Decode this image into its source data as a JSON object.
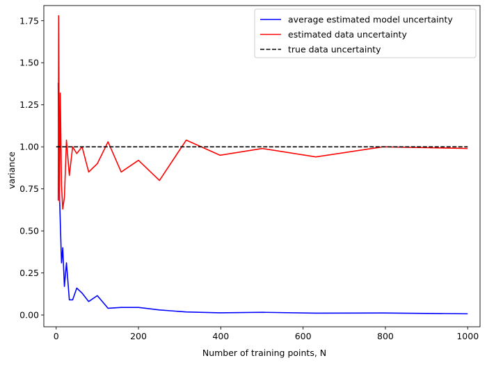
{
  "chart_data": {
    "type": "line",
    "title": "",
    "xlabel": "Number of training points, N",
    "ylabel": "variance",
    "xlim": [
      -30,
      1030
    ],
    "ylim": [
      -0.07,
      1.84
    ],
    "x_ticks": [
      0,
      200,
      400,
      600,
      800,
      1000
    ],
    "x_tick_labels": [
      "0",
      "200",
      "400",
      "600",
      "800",
      "1000"
    ],
    "y_ticks": [
      0.0,
      0.25,
      0.5,
      0.75,
      1.0,
      1.25,
      1.5,
      1.75
    ],
    "y_tick_labels": [
      "0.00",
      "0.25",
      "0.50",
      "0.75",
      "1.00",
      "1.25",
      "1.50",
      "1.75"
    ],
    "grid": false,
    "legend_position": "top-right",
    "series": [
      {
        "name": "average estimated model uncertainty",
        "color": "#0000ff",
        "style": "solid",
        "x": [
          5,
          6,
          8,
          10,
          13,
          16,
          20,
          25,
          32,
          40,
          50,
          63,
          79,
          100,
          126,
          158,
          200,
          251,
          316,
          398,
          501,
          631,
          794,
          1000
        ],
        "y": [
          1.38,
          0.95,
          0.72,
          0.55,
          0.31,
          0.4,
          0.17,
          0.31,
          0.09,
          0.09,
          0.16,
          0.13,
          0.08,
          0.115,
          0.04,
          0.045,
          0.045,
          0.03,
          0.018,
          0.013,
          0.016,
          0.011,
          0.012,
          0.007
        ]
      },
      {
        "name": "estimated data uncertainty",
        "color": "#ff0000",
        "style": "solid",
        "x": [
          5,
          6,
          8,
          10,
          13,
          16,
          20,
          25,
          32,
          40,
          50,
          63,
          79,
          100,
          126,
          158,
          200,
          251,
          316,
          398,
          501,
          631,
          794,
          1000
        ],
        "y": [
          0.68,
          1.78,
          0.67,
          1.32,
          0.77,
          0.63,
          0.7,
          1.04,
          0.83,
          1.0,
          0.96,
          1.0,
          0.85,
          0.9,
          1.03,
          0.85,
          0.92,
          0.8,
          1.04,
          0.95,
          0.99,
          0.94,
          1.0,
          0.99
        ]
      },
      {
        "name": "true data uncertainty",
        "color": "#000000",
        "style": "dashed",
        "x": [
          0,
          1000
        ],
        "y": [
          1.0,
          1.0
        ]
      }
    ]
  }
}
